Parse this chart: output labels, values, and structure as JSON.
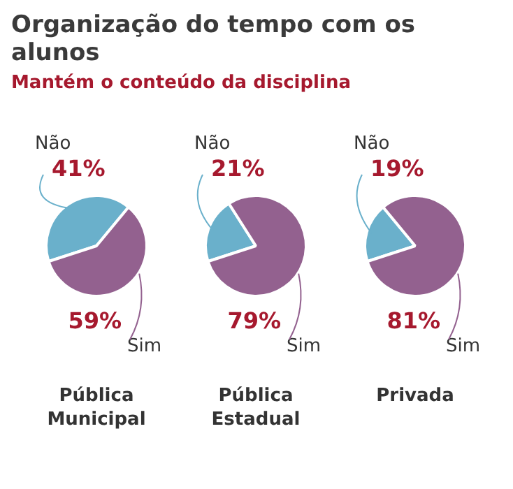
{
  "chart_data": [
    {
      "type": "pie",
      "title": "Organização do tempo com os alunos",
      "subtitle": "Mantém o conteúdo da disciplina",
      "xlabel": "Pública Municipal",
      "categories": [
        "Não",
        "Sim"
      ],
      "values": [
        41,
        59
      ],
      "colors": [
        "#6ab0cb",
        "#93618f"
      ],
      "value_labels": [
        "41%",
        "59%"
      ]
    },
    {
      "type": "pie",
      "xlabel": "Pública Estadual",
      "categories": [
        "Não",
        "Sim"
      ],
      "values": [
        21,
        79
      ],
      "colors": [
        "#6ab0cb",
        "#93618f"
      ],
      "value_labels": [
        "21%",
        "79%"
      ]
    },
    {
      "type": "pie",
      "xlabel": "Privada",
      "categories": [
        "Não",
        "Sim"
      ],
      "values": [
        19,
        81
      ],
      "colors": [
        "#6ab0cb",
        "#93618f"
      ],
      "value_labels": [
        "19%",
        "81%"
      ]
    }
  ]
}
